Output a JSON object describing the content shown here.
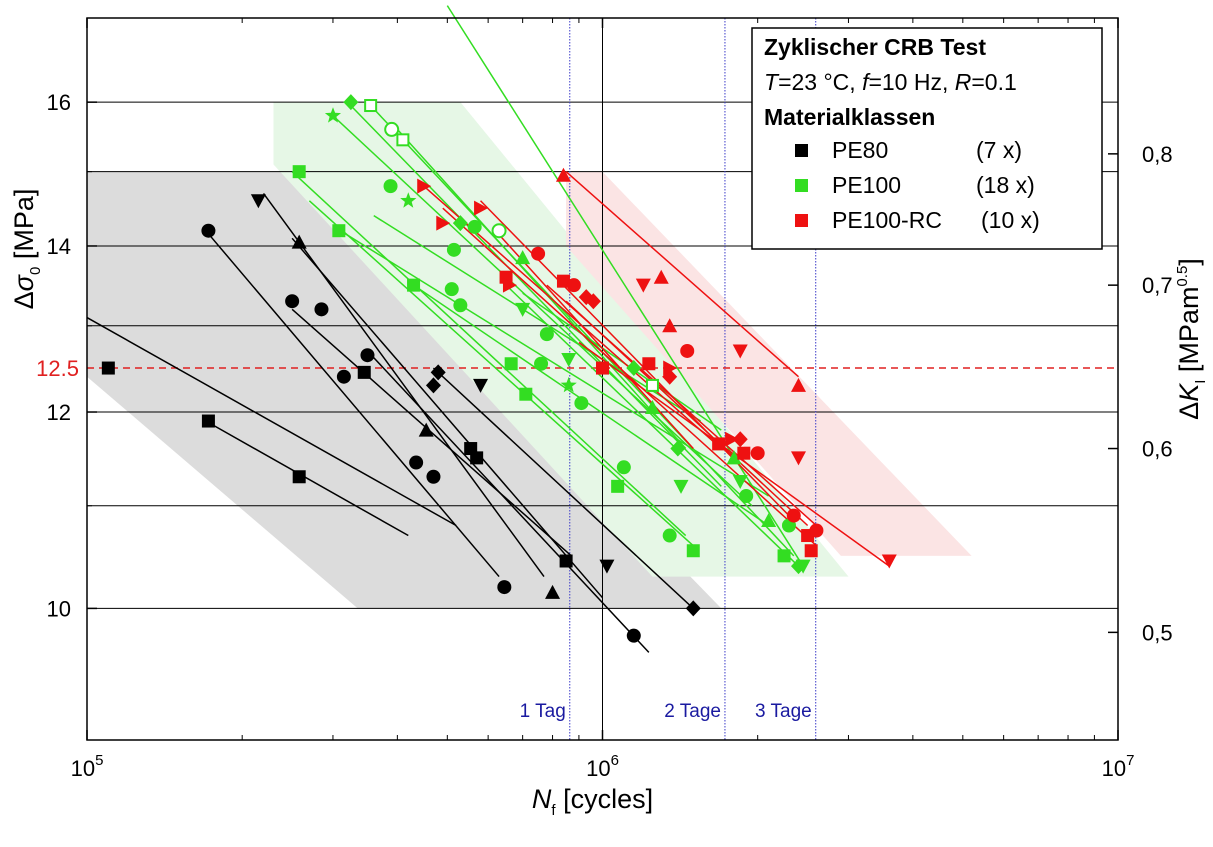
{
  "chart_data": {
    "type": "scatter",
    "x_axis": {
      "label_symbol": "N",
      "label_subscript": "f",
      "label_rest": " [cycles]",
      "scale": "log",
      "range": [
        100000,
        10000000
      ],
      "major_ticks": [
        {
          "value": 100000,
          "base": "10",
          "exp": "5"
        },
        {
          "value": 1000000,
          "base": "10",
          "exp": "6"
        },
        {
          "value": 10000000,
          "base": "10",
          "exp": "7"
        }
      ]
    },
    "y_axis": {
      "label_symbol": "Δσ",
      "label_subscript": "0",
      "label_rest": " [MPa]",
      "scale": "log",
      "range": [
        8.85,
        17.3
      ],
      "ticks": [
        {
          "value": 10,
          "label": "10"
        },
        {
          "value": 12,
          "label": "12"
        },
        {
          "value": 14,
          "label": "14"
        },
        {
          "value": 16,
          "label": "16"
        }
      ],
      "extra_gridlines": [
        11,
        13,
        15
      ]
    },
    "y2_axis": {
      "label_symbol": "ΔK",
      "label_subscript": "I",
      "label_rest": " [MPam",
      "label_sup": "0.5",
      "label_close": "]",
      "ticks": [
        {
          "value": 0.5,
          "label": "0,5",
          "y_equiv": 9.78
        },
        {
          "value": 0.6,
          "label": "0,6",
          "y_equiv": 11.6
        },
        {
          "value": 0.7,
          "label": "0,7",
          "y_equiv": 13.5
        },
        {
          "value": 0.8,
          "label": "0,8",
          "y_equiv": 15.25
        }
      ]
    },
    "reference_line": {
      "value": 12.5,
      "label": "12.5",
      "color": "#e02020"
    },
    "vertical_markers": [
      {
        "x": 864000,
        "label": "1 Tag"
      },
      {
        "x": 1728000,
        "label": "2 Tage"
      },
      {
        "x": 2592000,
        "label": "3 Tage"
      }
    ],
    "grid": true,
    "legend": {
      "position": "top-right",
      "title": "Zyklischer CRB Test",
      "conditions": {
        "t_sym": "T",
        "t_val": "=23 °C, ",
        "f_sym": "f",
        "f_val": "=10 Hz, ",
        "r_sym": "R",
        "r_val": "=0.1"
      },
      "heading": "Materialklassen",
      "entries": [
        {
          "name": "PE80",
          "count": "(7 x)",
          "color": "#000000"
        },
        {
          "name": "PE100",
          "count": "(18 x)",
          "color": "#33dd22"
        },
        {
          "name": "PE100-RC",
          "count": "(10 x)",
          "color": "#ee1111"
        }
      ]
    },
    "bands": [
      {
        "class": "PE80",
        "color": "#dcdcdc",
        "polygon": [
          [
            100000,
            15
          ],
          [
            255000,
            15
          ],
          [
            1700000,
            10
          ],
          [
            335000,
            10
          ],
          [
            100000,
            12.4
          ]
        ]
      },
      {
        "class": "PE100",
        "color": "#e6f7e6",
        "polygon": [
          [
            230000,
            16
          ],
          [
            530000,
            16
          ],
          [
            3000000,
            10.3
          ],
          [
            1250000,
            10.3
          ],
          [
            230000,
            15.1
          ]
        ]
      },
      {
        "class": "PE100-RC",
        "color": "#fbe4e4",
        "polygon": [
          [
            850000,
            15
          ],
          [
            1000000,
            15
          ],
          [
            5200000,
            10.5
          ],
          [
            2900000,
            10.5
          ],
          [
            850000,
            14
          ]
        ]
      }
    ],
    "series": [
      {
        "name": "PE80",
        "color": "#000000",
        "lines": [
          [
            [
              100000,
              13.1
            ],
            [
              520000,
              10.8
            ]
          ],
          [
            [
              170000,
              11.9
            ],
            [
              420000,
              10.7
            ]
          ],
          [
            [
              170000,
              14.2
            ],
            [
              630000,
              10.3
            ]
          ],
          [
            [
              250000,
              13.2
            ],
            [
              870000,
              10.5
            ]
          ],
          [
            [
              220000,
              14.7
            ],
            [
              770000,
              10.3
            ]
          ],
          [
            [
              250000,
              14.1
            ],
            [
              1000000,
              10.1
            ]
          ],
          [
            [
              350000,
              12.7
            ],
            [
              1230000,
              9.6
            ]
          ],
          [
            [
              470000,
              12.5
            ],
            [
              1500000,
              10
            ]
          ]
        ],
        "points": [
          {
            "m": "square",
            "x": 110000,
            "y": 12.5
          },
          {
            "m": "square",
            "x": 172000,
            "y": 11.9
          },
          {
            "m": "square",
            "x": 258000,
            "y": 11.3
          },
          {
            "m": "square",
            "x": 345000,
            "y": 12.45
          },
          {
            "m": "square",
            "x": 555000,
            "y": 11.6
          },
          {
            "m": "square",
            "x": 570000,
            "y": 11.5
          },
          {
            "m": "square",
            "x": 850000,
            "y": 10.45
          },
          {
            "m": "circle",
            "x": 172000,
            "y": 14.2
          },
          {
            "m": "circle",
            "x": 250000,
            "y": 13.3
          },
          {
            "m": "circle",
            "x": 285000,
            "y": 13.2
          },
          {
            "m": "circle",
            "x": 315000,
            "y": 12.4
          },
          {
            "m": "circle",
            "x": 350000,
            "y": 12.65
          },
          {
            "m": "circle",
            "x": 435000,
            "y": 11.45
          },
          {
            "m": "circle",
            "x": 470000,
            "y": 11.3
          },
          {
            "m": "circle",
            "x": 645000,
            "y": 10.2
          },
          {
            "m": "circle",
            "x": 1150000,
            "y": 9.75
          },
          {
            "m": "triangle-up",
            "x": 258000,
            "y": 14.05
          },
          {
            "m": "triangle-up",
            "x": 455000,
            "y": 11.8
          },
          {
            "m": "triangle-up",
            "x": 800000,
            "y": 10.15
          },
          {
            "m": "triangle-down",
            "x": 215000,
            "y": 14.6
          },
          {
            "m": "triangle-down",
            "x": 580000,
            "y": 12.3
          },
          {
            "m": "triangle-down",
            "x": 1020000,
            "y": 10.4
          },
          {
            "m": "diamond",
            "x": 480000,
            "y": 12.45
          },
          {
            "m": "diamond",
            "x": 470000,
            "y": 12.3
          },
          {
            "m": "diamond",
            "x": 1500000,
            "y": 10
          }
        ]
      },
      {
        "name": "PE100",
        "color": "#33dd22",
        "lines": [
          [
            [
              500000,
              17.5
            ],
            [
              2450000,
              10.4
            ]
          ],
          [
            [
              320000,
              16
            ],
            [
              1700000,
              11.2
            ]
          ],
          [
            [
              350000,
              16
            ],
            [
              2350000,
              10.5
            ]
          ],
          [
            [
              300000,
              15.8
            ],
            [
              1950000,
              11
            ]
          ],
          [
            [
              400000,
              15.6
            ],
            [
              1450000,
              11.6
            ]
          ],
          [
            [
              250000,
              15
            ],
            [
              1450000,
              10.7
            ]
          ],
          [
            [
              270000,
              14.6
            ],
            [
              1500000,
              10.6
            ]
          ],
          [
            [
              310000,
              14.2
            ],
            [
              2100000,
              11.1
            ]
          ],
          [
            [
              360000,
              14.4
            ],
            [
              1550000,
              11.9
            ]
          ],
          [
            [
              430000,
              13.5
            ],
            [
              2100000,
              10.8
            ]
          ],
          [
            [
              650000,
              13.5
            ],
            [
              2400000,
              10.4
            ]
          ],
          [
            [
              700000,
              13.4
            ],
            [
              1700000,
              11.8
            ]
          ]
        ],
        "points": [
          {
            "m": "square",
            "x": 258000,
            "y": 15
          },
          {
            "m": "square",
            "x": 308000,
            "y": 14.2
          },
          {
            "m": "square",
            "x": 430000,
            "y": 13.5
          },
          {
            "m": "square",
            "x": 665000,
            "y": 12.55
          },
          {
            "m": "square",
            "x": 710000,
            "y": 12.2
          },
          {
            "m": "square",
            "x": 1070000,
            "y": 11.2
          },
          {
            "m": "square",
            "x": 1500000,
            "y": 10.55
          },
          {
            "m": "square",
            "x": 2250000,
            "y": 10.5
          },
          {
            "m": "square-open",
            "x": 355000,
            "y": 15.95
          },
          {
            "m": "square-open",
            "x": 410000,
            "y": 15.45
          },
          {
            "m": "square-open",
            "x": 1250000,
            "y": 12.3
          },
          {
            "m": "circle",
            "x": 388000,
            "y": 14.8
          },
          {
            "m": "circle",
            "x": 515000,
            "y": 13.95
          },
          {
            "m": "circle",
            "x": 510000,
            "y": 13.45
          },
          {
            "m": "circle",
            "x": 530000,
            "y": 13.25
          },
          {
            "m": "circle",
            "x": 565000,
            "y": 14.25
          },
          {
            "m": "circle",
            "x": 780000,
            "y": 12.9
          },
          {
            "m": "circle",
            "x": 760000,
            "y": 12.55
          },
          {
            "m": "circle",
            "x": 910000,
            "y": 12.1
          },
          {
            "m": "circle",
            "x": 1100000,
            "y": 11.4
          },
          {
            "m": "circle",
            "x": 1350000,
            "y": 10.7
          },
          {
            "m": "circle",
            "x": 1900000,
            "y": 11.1
          },
          {
            "m": "circle",
            "x": 2300000,
            "y": 10.8
          },
          {
            "m": "circle-open",
            "x": 390000,
            "y": 15.6
          },
          {
            "m": "circle-open",
            "x": 630000,
            "y": 14.2
          },
          {
            "m": "diamond",
            "x": 325000,
            "y": 16
          },
          {
            "m": "diamond",
            "x": 530000,
            "y": 14.3
          },
          {
            "m": "diamond",
            "x": 1150000,
            "y": 12.5
          },
          {
            "m": "diamond",
            "x": 1400000,
            "y": 11.6
          },
          {
            "m": "diamond",
            "x": 2400000,
            "y": 10.4
          },
          {
            "m": "triangle-up",
            "x": 700000,
            "y": 13.85
          },
          {
            "m": "triangle-up",
            "x": 1250000,
            "y": 12.05
          },
          {
            "m": "triangle-up",
            "x": 1800000,
            "y": 11.5
          },
          {
            "m": "triangle-up",
            "x": 2100000,
            "y": 10.85
          },
          {
            "m": "triangle-down",
            "x": 700000,
            "y": 13.2
          },
          {
            "m": "triangle-down",
            "x": 860000,
            "y": 12.6
          },
          {
            "m": "triangle-down",
            "x": 1420000,
            "y": 11.2
          },
          {
            "m": "triangle-down",
            "x": 1850000,
            "y": 11.25
          },
          {
            "m": "triangle-down",
            "x": 2450000,
            "y": 10.4
          },
          {
            "m": "star",
            "x": 300000,
            "y": 15.8
          },
          {
            "m": "star",
            "x": 420000,
            "y": 14.6
          },
          {
            "m": "star",
            "x": 860000,
            "y": 12.3
          }
        ]
      },
      {
        "name": "PE100-RC",
        "color": "#ee1111",
        "lines": [
          [
            [
              450000,
              14.8
            ],
            [
              1700000,
              11.6
            ]
          ],
          [
            [
              490000,
              14.5
            ],
            [
              2600000,
              10.6
            ]
          ],
          [
            [
              580000,
              14.6
            ],
            [
              2300000,
              10.9
            ]
          ],
          [
            [
              620000,
              14.2
            ],
            [
              1500000,
              11.6
            ]
          ],
          [
            [
              850000,
              15
            ],
            [
              2400000,
              12.4
            ]
          ],
          [
            [
              780000,
              13.5
            ],
            [
              2600000,
              10.8
            ]
          ],
          [
            [
              850000,
              13.3
            ],
            [
              2500000,
              10.8
            ]
          ],
          [
            [
              900000,
              12.8
            ],
            [
              3600000,
              10.4
            ]
          ]
        ],
        "points": [
          {
            "m": "square",
            "x": 650000,
            "y": 13.6
          },
          {
            "m": "square",
            "x": 840000,
            "y": 13.55
          },
          {
            "m": "square",
            "x": 1000000,
            "y": 12.5
          },
          {
            "m": "square",
            "x": 1230000,
            "y": 12.55
          },
          {
            "m": "square",
            "x": 1680000,
            "y": 11.65
          },
          {
            "m": "square",
            "x": 1880000,
            "y": 11.55
          },
          {
            "m": "square",
            "x": 2500000,
            "y": 10.7
          },
          {
            "m": "square",
            "x": 2540000,
            "y": 10.55
          },
          {
            "m": "circle",
            "x": 750000,
            "y": 13.9
          },
          {
            "m": "circle",
            "x": 880000,
            "y": 13.5
          },
          {
            "m": "circle",
            "x": 1460000,
            "y": 12.7
          },
          {
            "m": "circle",
            "x": 2000000,
            "y": 11.55
          },
          {
            "m": "circle",
            "x": 2350000,
            "y": 10.9
          },
          {
            "m": "circle",
            "x": 2600000,
            "y": 10.75
          },
          {
            "m": "triangle-up",
            "x": 840000,
            "y": 14.95
          },
          {
            "m": "triangle-up",
            "x": 1300000,
            "y": 13.6
          },
          {
            "m": "triangle-up",
            "x": 1350000,
            "y": 13.0
          },
          {
            "m": "triangle-up",
            "x": 2400000,
            "y": 12.3
          },
          {
            "m": "triangle-down",
            "x": 1200000,
            "y": 13.5
          },
          {
            "m": "triangle-down",
            "x": 1850000,
            "y": 12.7
          },
          {
            "m": "triangle-down",
            "x": 2400000,
            "y": 11.5
          },
          {
            "m": "triangle-down",
            "x": 3600000,
            "y": 10.45
          },
          {
            "m": "diamond",
            "x": 930000,
            "y": 13.35
          },
          {
            "m": "diamond",
            "x": 960000,
            "y": 13.3
          },
          {
            "m": "diamond",
            "x": 1350000,
            "y": 12.4
          },
          {
            "m": "diamond",
            "x": 1850000,
            "y": 11.7
          },
          {
            "m": "triangle-right",
            "x": 450000,
            "y": 14.8
          },
          {
            "m": "triangle-right",
            "x": 490000,
            "y": 14.3
          },
          {
            "m": "triangle-right",
            "x": 580000,
            "y": 14.5
          },
          {
            "m": "triangle-right",
            "x": 660000,
            "y": 13.5
          },
          {
            "m": "triangle-right",
            "x": 1350000,
            "y": 12.5
          },
          {
            "m": "triangle-right",
            "x": 1780000,
            "y": 11.7
          }
        ]
      }
    ]
  }
}
